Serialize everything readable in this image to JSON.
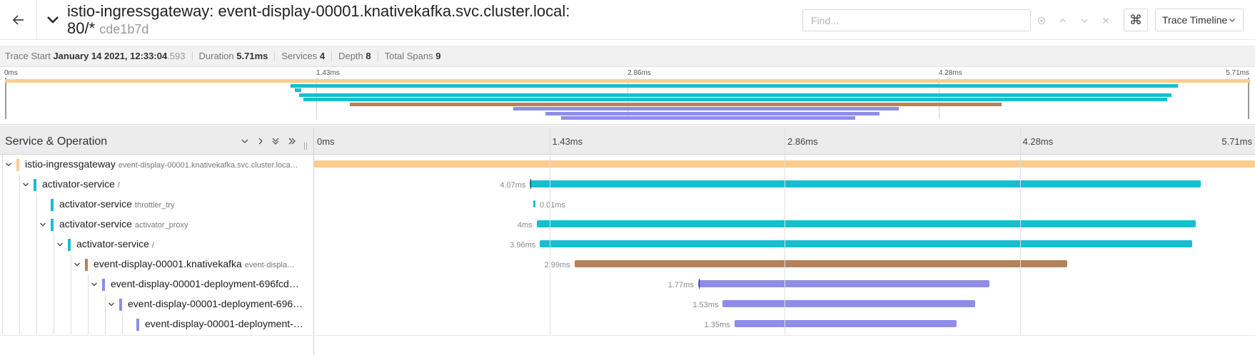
{
  "header": {
    "title_line1": "istio-ingressgateway: event-display-00001.knativekafka.svc.cluster.local:",
    "title_line2": "80/*",
    "trace_id": "cde1b7d",
    "find_placeholder": "Find...",
    "view_label": "Trace Timeline",
    "kbd_glyph": "⌘"
  },
  "summary": {
    "trace_start_label": "Trace Start",
    "trace_start": "January 14 2021, 12:33:04",
    "trace_start_ms": ".593",
    "duration_label": "Duration",
    "duration": "5.71ms",
    "services_label": "Services",
    "services": "4",
    "depth_label": "Depth",
    "depth": "8",
    "total_spans_label": "Total Spans",
    "total_spans": "9"
  },
  "timeline": {
    "column_title": "Service & Operation",
    "ticks": [
      "0ms",
      "1.43ms",
      "2.86ms",
      "4.28ms",
      "5.71ms"
    ],
    "total_ms": 5.71
  },
  "colors": {
    "istio-ingressgateway": "#fdcc8c",
    "activator-service": "#17becf",
    "event-display-00001.knativekafka": "#b5835a",
    "event-display-00001-deployment": "#8e8ee8"
  },
  "spans": [
    {
      "service": "istio-ingressgateway",
      "operation": "event-display-00001.knativekafka.svc.cluster.loca…",
      "color_key": "istio-ingressgateway",
      "depth": 0,
      "expandable": true,
      "start_ms": 0,
      "duration_ms": 5.71,
      "duration_label": ""
    },
    {
      "service": "activator-service",
      "operation": "/",
      "color_key": "activator-service",
      "depth": 1,
      "expandable": true,
      "start_ms": 1.31,
      "duration_ms": 4.07,
      "duration_label": "4.07ms"
    },
    {
      "service": "activator-service",
      "operation": "throttler_try",
      "color_key": "activator-service",
      "depth": 2,
      "expandable": false,
      "start_ms": 1.33,
      "duration_ms": 0.01,
      "duration_label": "0.01ms"
    },
    {
      "service": "activator-service",
      "operation": "activator_proxy",
      "color_key": "activator-service",
      "depth": 2,
      "expandable": true,
      "start_ms": 1.35,
      "duration_ms": 4.0,
      "duration_label": "4ms"
    },
    {
      "service": "activator-service",
      "operation": "/",
      "color_key": "activator-service",
      "depth": 3,
      "expandable": true,
      "start_ms": 1.37,
      "duration_ms": 3.96,
      "duration_label": "3.96ms"
    },
    {
      "service": "event-display-00001.knativekafka",
      "operation": "event-displa…",
      "color_key": "event-display-00001.knativekafka",
      "depth": 4,
      "expandable": true,
      "start_ms": 1.58,
      "duration_ms": 2.99,
      "duration_label": "2.99ms"
    },
    {
      "service": "event-display-00001-deployment-696fcd…",
      "operation": "",
      "color_key": "event-display-00001-deployment",
      "depth": 5,
      "expandable": true,
      "start_ms": 2.33,
      "duration_ms": 1.77,
      "duration_label": "1.77ms"
    },
    {
      "service": "event-display-00001-deployment-696…",
      "operation": "",
      "color_key": "event-display-00001-deployment",
      "depth": 6,
      "expandable": true,
      "start_ms": 2.48,
      "duration_ms": 1.53,
      "duration_label": "1.53ms"
    },
    {
      "service": "event-display-00001-deployment-…",
      "operation": "",
      "color_key": "event-display-00001-deployment",
      "depth": 7,
      "expandable": false,
      "start_ms": 2.55,
      "duration_ms": 1.35,
      "duration_label": "1.35ms"
    }
  ]
}
